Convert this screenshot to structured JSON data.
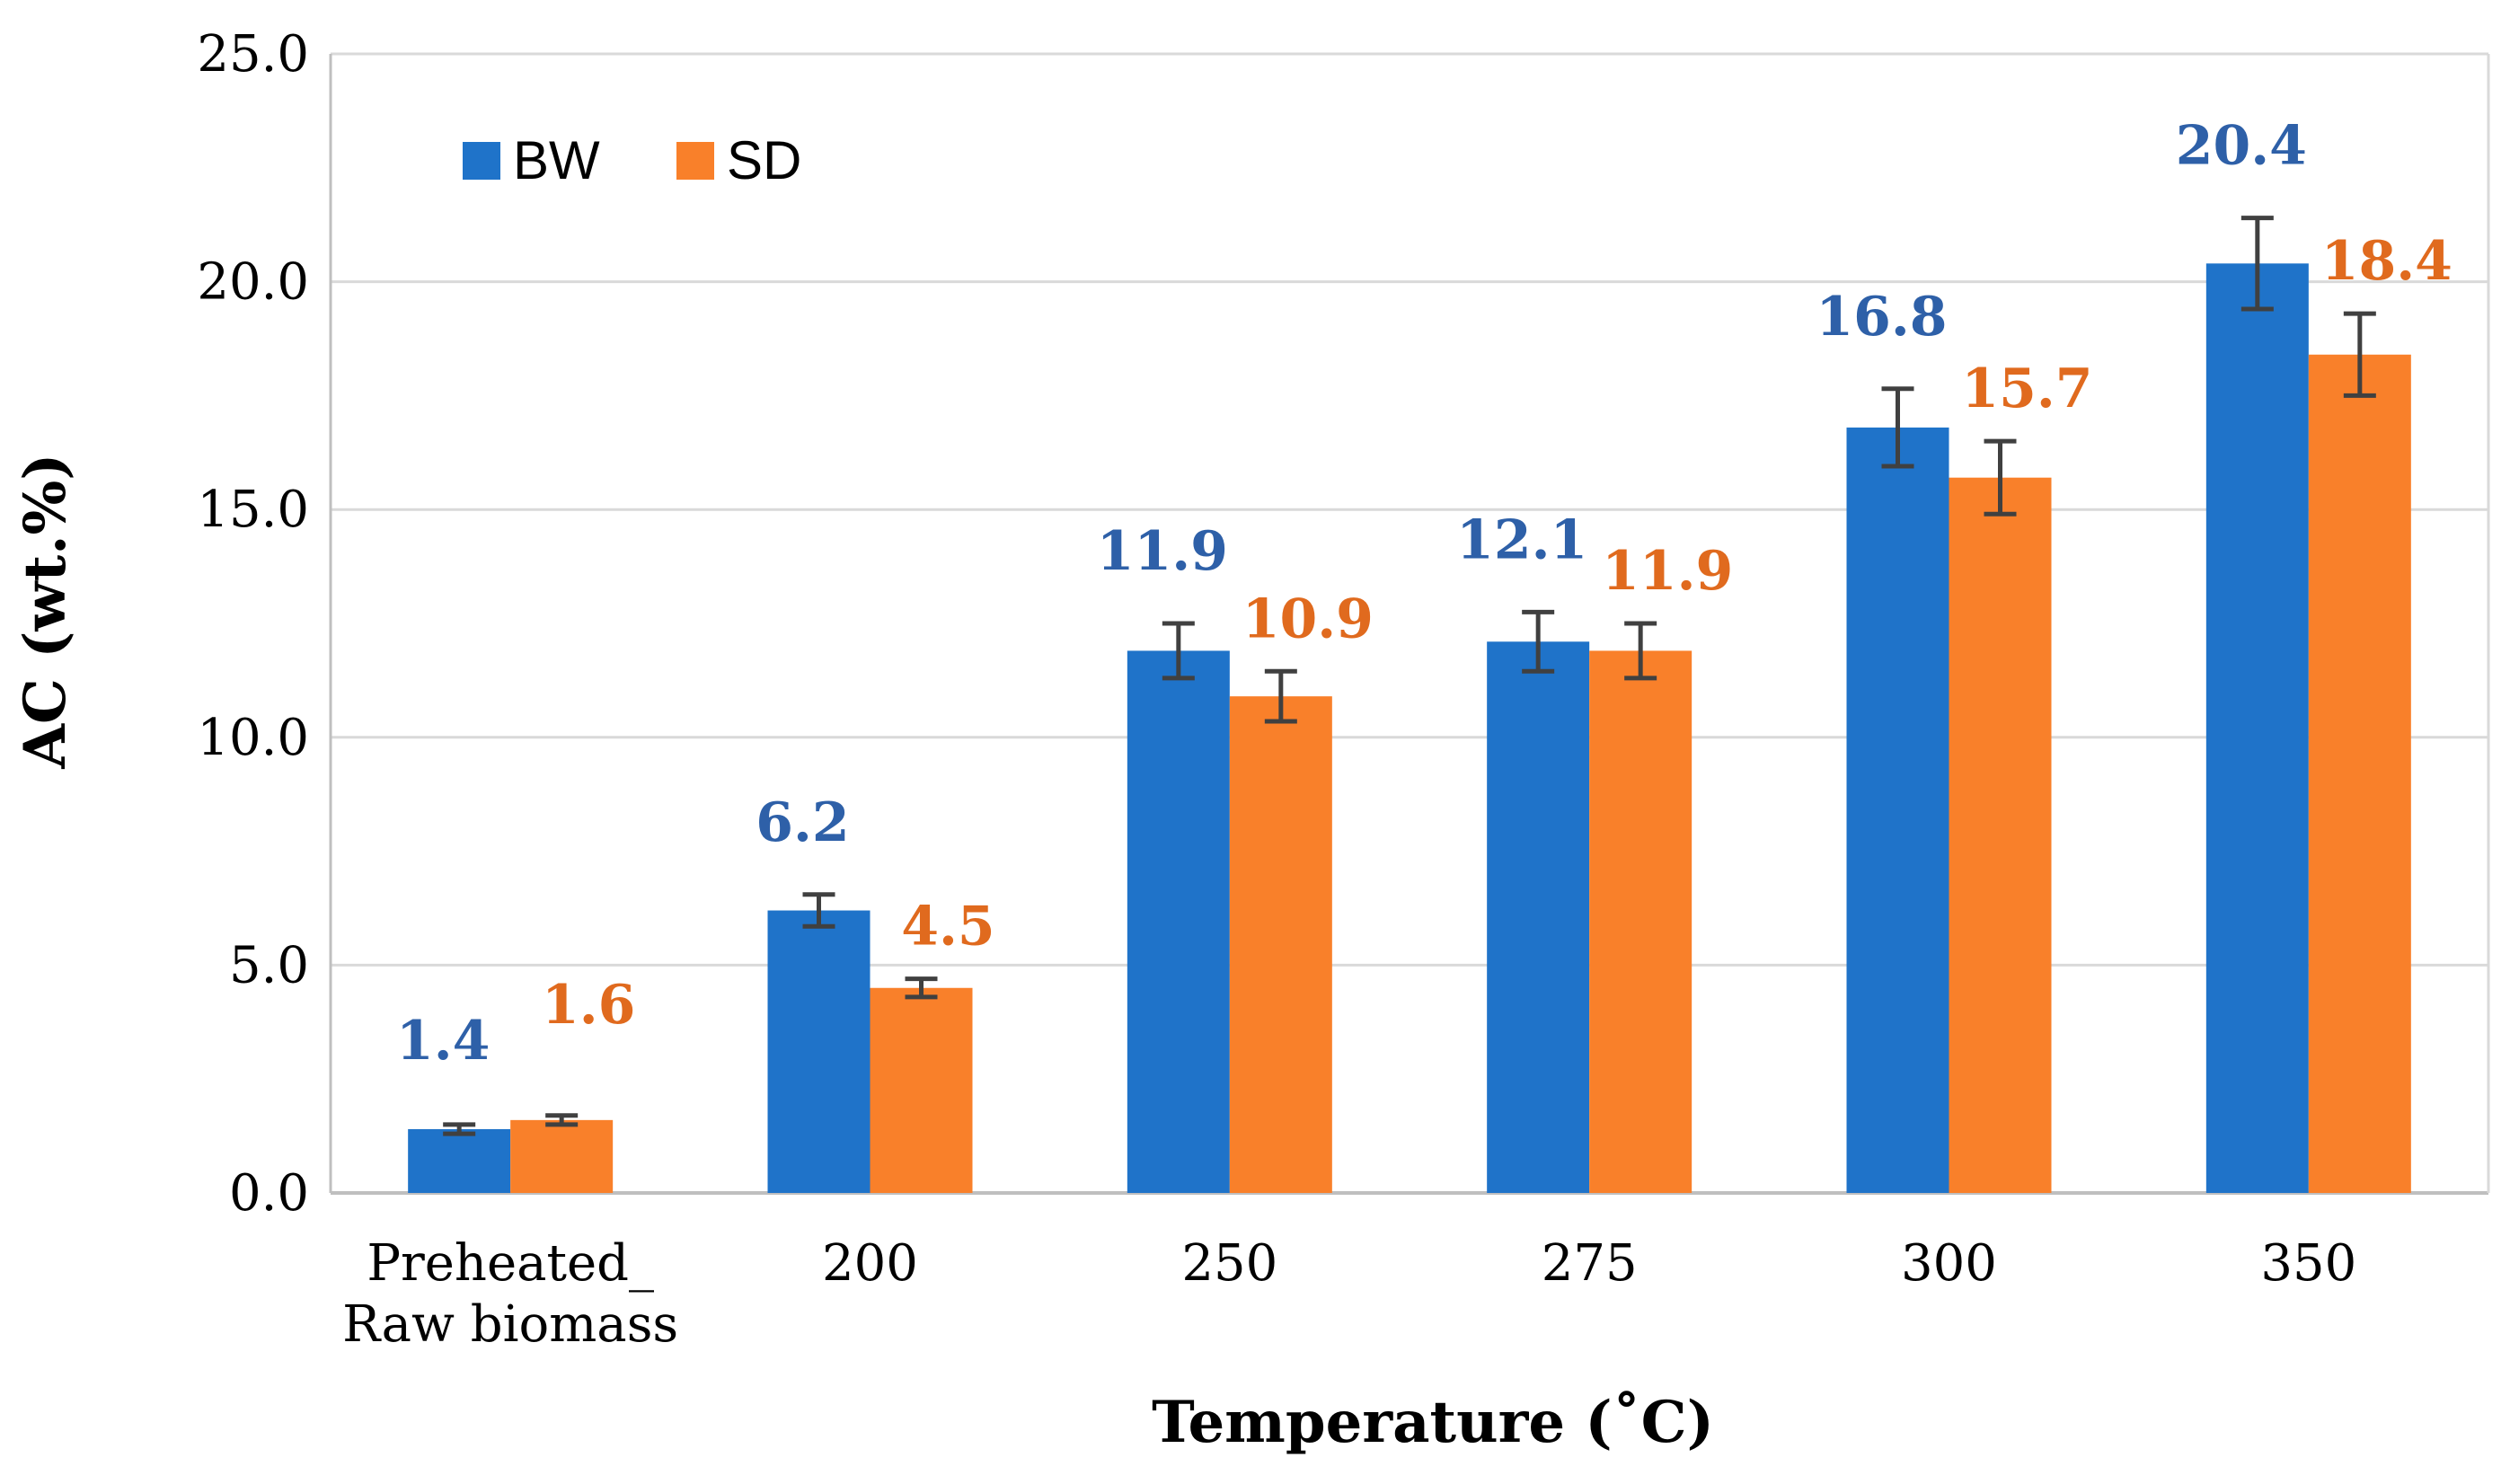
{
  "chart_data": {
    "type": "bar",
    "title": "",
    "xlabel": "Temperature (˚C)",
    "ylabel": "AC (wt.%)",
    "categories": [
      "Preheated_\nRaw biomass",
      "200",
      "250",
      "275",
      "300",
      "350"
    ],
    "category_lines": [
      [
        "Preheated_",
        "Raw biomass"
      ],
      [
        "200"
      ],
      [
        "250"
      ],
      [
        "275"
      ],
      [
        "300"
      ],
      [
        "350"
      ]
    ],
    "ylim": [
      0,
      25
    ],
    "ytick_labels": [
      "0.0",
      "5.0",
      "10.0",
      "15.0",
      "20.0",
      "25.0"
    ],
    "grid": true,
    "legend_position": "top-left",
    "series": [
      {
        "name": "BW",
        "color": "#1f73c9",
        "label_color": "#2e60a8",
        "values": [
          1.4,
          6.2,
          11.9,
          12.1,
          16.8,
          20.4
        ],
        "value_labels": [
          "1.4",
          "6.2",
          "11.9",
          "12.1",
          "16.8",
          "20.4"
        ],
        "errors": [
          0.1,
          0.35,
          0.6,
          0.65,
          0.85,
          1.0
        ]
      },
      {
        "name": "SD",
        "color": "#f9802a",
        "label_color": "#e06a1e",
        "values": [
          1.6,
          4.5,
          10.9,
          11.9,
          15.7,
          18.4
        ],
        "value_labels": [
          "1.6",
          "4.5",
          "10.9",
          "11.9",
          "15.7",
          "18.4"
        ],
        "errors": [
          0.1,
          0.2,
          0.55,
          0.6,
          0.8,
          0.9
        ]
      }
    ],
    "error_bar_color": "#404040",
    "grid_color": "#d9d9d9",
    "axis_color": "#bfbfbf"
  }
}
